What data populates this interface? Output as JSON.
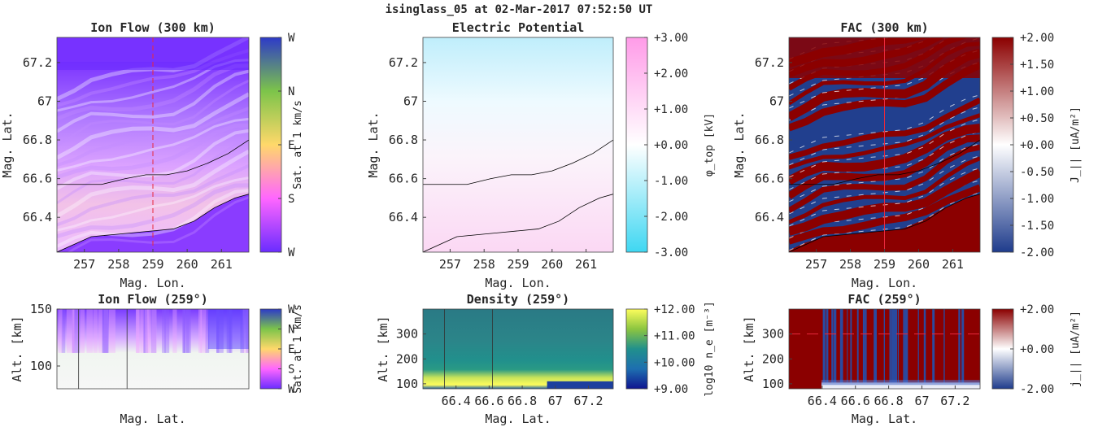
{
  "figure": {
    "title": "isinglass_05 at 02-Mar-2017 07:52:50 UT"
  },
  "chart_data": [
    {
      "type": "heatmap",
      "title": "Ion Flow (300 km)",
      "xlabel": "Mag. Lon.",
      "ylabel": "Mag. Lat.",
      "xlim": [
        256.2,
        261.8
      ],
      "ylim": [
        66.22,
        67.33
      ],
      "xticks": [
        257,
        258,
        259,
        260,
        261
      ],
      "yticks": [
        66.4,
        66.6,
        66.8,
        67,
        67.2
      ],
      "xtick_labels": [
        "257",
        "258",
        "259",
        "260",
        "261"
      ],
      "ytick_labels": [
        "66.4",
        "66.6",
        "66.8",
        "67",
        "67.2"
      ],
      "colorbar": {
        "label": "Sat. at 1 km/s",
        "tick_labels": [
          "W",
          "S",
          "E",
          "N",
          "W"
        ],
        "colors": [
          "#6a2cff",
          "#ff66ff",
          "#ffd86a",
          "#7cc44a",
          "#2d3ac8"
        ]
      },
      "contours": [
        {
          "x": [
            256.2,
            256.8,
            257.5,
            258.2,
            258.8,
            259.4,
            260.0,
            260.6,
            261.2,
            261.8
          ],
          "y": [
            66.57,
            66.57,
            66.57,
            66.6,
            66.62,
            66.62,
            66.64,
            66.68,
            66.73,
            66.8
          ]
        },
        {
          "x": [
            256.2,
            256.7,
            257.2,
            257.8,
            258.4,
            259.0,
            259.6,
            260.2,
            260.8,
            261.4,
            261.8
          ],
          "y": [
            66.22,
            66.26,
            66.3,
            66.31,
            66.32,
            66.33,
            66.34,
            66.38,
            66.45,
            66.5,
            66.52
          ]
        }
      ],
      "marker_line": {
        "axis": "x",
        "value": 259,
        "style": "dashed",
        "color": "#e8293c"
      }
    },
    {
      "type": "heatmap",
      "title": "Electric Potential",
      "xlabel": "Mag. Lon.",
      "ylabel": "Mag. Lat.",
      "xlim": [
        256.2,
        261.8
      ],
      "ylim": [
        66.22,
        67.33
      ],
      "xticks": [
        257,
        258,
        259,
        260,
        261
      ],
      "yticks": [
        66.4,
        66.6,
        66.8,
        67,
        67.2
      ],
      "xtick_labels": [
        "257",
        "258",
        "259",
        "260",
        "261"
      ],
      "ytick_labels": [
        "66.4",
        "66.6",
        "66.8",
        "67",
        "67.2"
      ],
      "colorbar": {
        "label": "φ_top [kV]",
        "range": [
          -3,
          3
        ],
        "tick_labels": [
          "-3.00",
          "-2.00",
          "-1.00",
          "+0.00",
          "+1.00",
          "+2.00",
          "+3.00"
        ],
        "colors": [
          "#3fd7f2",
          "#ffffff",
          "#ff9be8"
        ]
      },
      "contours": [
        {
          "x": [
            256.2,
            256.8,
            257.5,
            258.2,
            258.8,
            259.4,
            260.0,
            260.6,
            261.2,
            261.8
          ],
          "y": [
            66.57,
            66.57,
            66.57,
            66.6,
            66.62,
            66.62,
            66.64,
            66.68,
            66.73,
            66.8
          ]
        },
        {
          "x": [
            256.2,
            256.7,
            257.2,
            257.8,
            258.4,
            259.0,
            259.6,
            260.2,
            260.8,
            261.4,
            261.8
          ],
          "y": [
            66.22,
            66.26,
            66.3,
            66.31,
            66.32,
            66.33,
            66.34,
            66.38,
            66.45,
            66.5,
            66.52
          ]
        }
      ]
    },
    {
      "type": "heatmap",
      "title": "FAC (300 km)",
      "xlabel": "Mag. Lon.",
      "ylabel": "Mag. Lat.",
      "xlim": [
        256.2,
        261.8
      ],
      "ylim": [
        66.22,
        67.33
      ],
      "xticks": [
        257,
        258,
        259,
        260,
        261
      ],
      "yticks": [
        66.4,
        66.6,
        66.8,
        67,
        67.2
      ],
      "xtick_labels": [
        "257",
        "258",
        "259",
        "260",
        "261"
      ],
      "ytick_labels": [
        "66.4",
        "66.6",
        "66.8",
        "67",
        "67.2"
      ],
      "colorbar": {
        "label": "J_|| [uA/m²]",
        "range": [
          -2,
          2
        ],
        "tick_labels": [
          "-2.00",
          "-1.50",
          "-1.00",
          "-0.50",
          "+0.00",
          "+0.50",
          "+1.00",
          "+1.50",
          "+2.00"
        ],
        "colors": [
          "#1f3c8c",
          "#ffffff",
          "#8b0000"
        ]
      },
      "contours": [
        {
          "x": [
            256.2,
            256.8,
            257.5,
            258.2,
            258.8,
            259.4,
            260.0,
            260.6,
            261.2,
            261.8
          ],
          "y": [
            66.57,
            66.57,
            66.57,
            66.6,
            66.62,
            66.62,
            66.64,
            66.68,
            66.73,
            66.8
          ]
        },
        {
          "x": [
            256.2,
            256.7,
            257.2,
            257.8,
            258.4,
            259.0,
            259.6,
            260.2,
            260.8,
            261.4,
            261.8
          ],
          "y": [
            66.22,
            66.26,
            66.3,
            66.31,
            66.32,
            66.33,
            66.34,
            66.38,
            66.45,
            66.5,
            66.52
          ]
        }
      ],
      "marker_line": {
        "axis": "x",
        "value": 259,
        "style": "solid",
        "color": "#e8293c"
      }
    },
    {
      "type": "heatmap",
      "title": "Ion Flow (259°)",
      "xlabel": "Mag. Lat.",
      "ylabel": "Alt. [km]",
      "xlim": [
        66.2,
        67.35
      ],
      "ylim": [
        80,
        150
      ],
      "yticks": [
        100,
        150
      ],
      "ytick_labels": [
        "100",
        "150"
      ],
      "colorbar": {
        "label": "Sat. at 1 km/s",
        "tick_labels": [
          "W",
          "S",
          "E",
          "N",
          "W"
        ],
        "colors": [
          "#6a2cff",
          "#ff66ff",
          "#ffd86a",
          "#7cc44a",
          "#2d3ac8"
        ]
      },
      "vlines": [
        66.33,
        66.62
      ]
    },
    {
      "type": "heatmap",
      "title": "Density (259°)",
      "xlabel": "Mag. Lat.",
      "ylabel": "Alt. [km]",
      "xlim": [
        66.2,
        67.35
      ],
      "ylim": [
        80,
        400
      ],
      "xticks": [
        66.4,
        66.6,
        66.8,
        67,
        67.2
      ],
      "yticks": [
        100,
        200,
        300
      ],
      "xtick_labels": [
        "66.4",
        "66.6",
        "66.8",
        "67",
        "67.2"
      ],
      "ytick_labels": [
        "100",
        "200",
        "300"
      ],
      "colorbar": {
        "label": "log10 n_e [m⁻³]",
        "range": [
          9,
          12
        ],
        "tick_labels": [
          "+9.00",
          "+10.00",
          "+11.00",
          "+12.00"
        ],
        "colors": [
          "#0f1590",
          "#1e6fb0",
          "#21908c",
          "#8cc540",
          "#fdfd5c"
        ]
      },
      "vlines": [
        66.33,
        66.62
      ]
    },
    {
      "type": "heatmap",
      "title": "FAC (259°)",
      "xlabel": "Mag. Lat.",
      "ylabel": "Alt. [km]",
      "xlim": [
        66.2,
        67.35
      ],
      "ylim": [
        80,
        400
      ],
      "xticks": [
        66.4,
        66.6,
        66.8,
        67,
        67.2
      ],
      "yticks": [
        100,
        200,
        300
      ],
      "xtick_labels": [
        "66.4",
        "66.6",
        "66.8",
        "67",
        "67.2"
      ],
      "ytick_labels": [
        "100",
        "200",
        "300"
      ],
      "colorbar": {
        "label": "j_|| [uA/m²]",
        "range": [
          -2,
          2
        ],
        "tick_labels": [
          "-2.00",
          "+0.00",
          "+2.00"
        ],
        "colors": [
          "#1f3c8c",
          "#ffffff",
          "#8b0000"
        ]
      },
      "marker_line": {
        "axis": "y",
        "value": 300,
        "style": "dashed",
        "color": "#e8293c"
      }
    }
  ]
}
